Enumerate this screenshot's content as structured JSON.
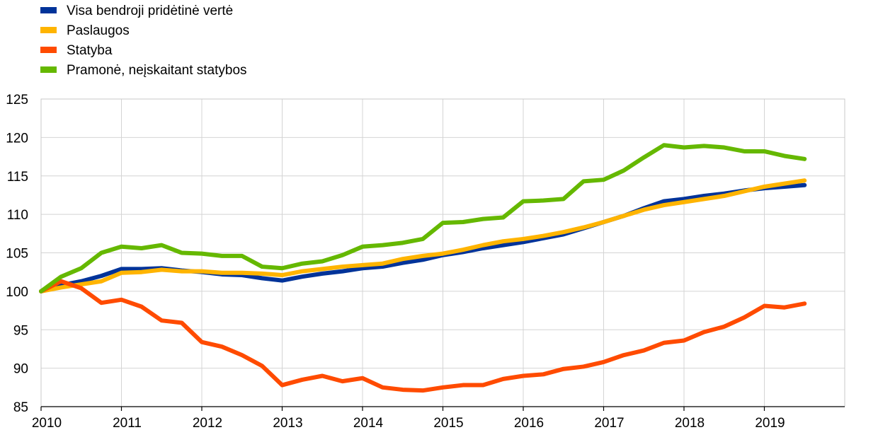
{
  "chart_data": {
    "type": "line",
    "title": "",
    "xlabel": "",
    "ylabel": "",
    "xlim": [
      2010,
      2020
    ],
    "ylim": [
      85,
      125
    ],
    "x_ticks": [
      2010,
      2011,
      2012,
      2013,
      2014,
      2015,
      2016,
      2017,
      2018,
      2019
    ],
    "x_tick_labels": [
      "2010",
      "2011",
      "2012",
      "2013",
      "2014",
      "2015",
      "2016",
      "2017",
      "2018",
      "2019"
    ],
    "y_ticks": [
      85,
      90,
      95,
      100,
      105,
      110,
      115,
      120,
      125
    ],
    "y_tick_labels": [
      "85",
      "90",
      "95",
      "100",
      "105",
      "110",
      "115",
      "120",
      "125"
    ],
    "grid": true,
    "legend_position": "top-left",
    "x": [
      2010.0,
      2010.25,
      2010.5,
      2010.75,
      2011.0,
      2011.25,
      2011.5,
      2011.75,
      2012.0,
      2012.25,
      2012.5,
      2012.75,
      2013.0,
      2013.25,
      2013.5,
      2013.75,
      2014.0,
      2014.25,
      2014.5,
      2014.75,
      2015.0,
      2015.25,
      2015.5,
      2015.75,
      2016.0,
      2016.25,
      2016.5,
      2016.75,
      2017.0,
      2017.25,
      2017.5,
      2017.75,
      2018.0,
      2018.25,
      2018.5,
      2018.75,
      2019.0,
      2019.25,
      2019.5
    ],
    "series": [
      {
        "name": "Visa bendroji pridėtinė vertė",
        "color": "#003399",
        "values": [
          100.0,
          100.8,
          101.3,
          102.0,
          102.9,
          102.9,
          103.0,
          102.7,
          102.5,
          102.2,
          102.1,
          101.7,
          101.4,
          101.9,
          102.3,
          102.6,
          103.0,
          103.2,
          103.7,
          104.1,
          104.7,
          105.1,
          105.6,
          106.0,
          106.4,
          106.9,
          107.4,
          108.2,
          109.0,
          109.8,
          110.8,
          111.7,
          112.0,
          112.4,
          112.7,
          113.1,
          113.4,
          113.6,
          113.8
        ]
      },
      {
        "name": "Paslaugos",
        "color": "#FFB400",
        "values": [
          100.0,
          100.5,
          100.9,
          101.3,
          102.4,
          102.5,
          102.8,
          102.6,
          102.6,
          102.4,
          102.4,
          102.3,
          102.1,
          102.6,
          102.9,
          103.2,
          103.4,
          103.6,
          104.2,
          104.6,
          104.9,
          105.4,
          106.0,
          106.5,
          106.8,
          107.2,
          107.7,
          108.3,
          109.0,
          109.8,
          110.6,
          111.2,
          111.6,
          112.0,
          112.4,
          113.0,
          113.6,
          114.0,
          114.4
        ]
      },
      {
        "name": "Statyba",
        "color": "#FF4B00",
        "values": [
          100.0,
          101.3,
          100.4,
          98.5,
          98.9,
          98.0,
          96.2,
          95.9,
          93.4,
          92.8,
          91.7,
          90.3,
          87.8,
          88.5,
          89.0,
          88.3,
          88.7,
          87.5,
          87.2,
          87.1,
          87.5,
          87.8,
          87.8,
          88.6,
          89.0,
          89.2,
          89.9,
          90.2,
          90.8,
          91.7,
          92.3,
          93.3,
          93.6,
          94.7,
          95.4,
          96.6,
          98.1,
          97.9,
          98.4
        ]
      },
      {
        "name": "Pramonė, neįskaitant statybos",
        "color": "#65B800",
        "values": [
          100.0,
          101.9,
          103.0,
          105.0,
          105.8,
          105.6,
          106.0,
          105.0,
          104.9,
          104.6,
          104.6,
          103.2,
          103.0,
          103.6,
          103.9,
          104.7,
          105.8,
          106.0,
          106.3,
          106.8,
          108.9,
          109.0,
          109.4,
          109.6,
          111.7,
          111.8,
          112.0,
          114.3,
          114.5,
          115.7,
          117.4,
          119.0,
          118.7,
          118.9,
          118.7,
          118.2,
          118.2,
          117.6,
          117.2
        ]
      }
    ]
  }
}
